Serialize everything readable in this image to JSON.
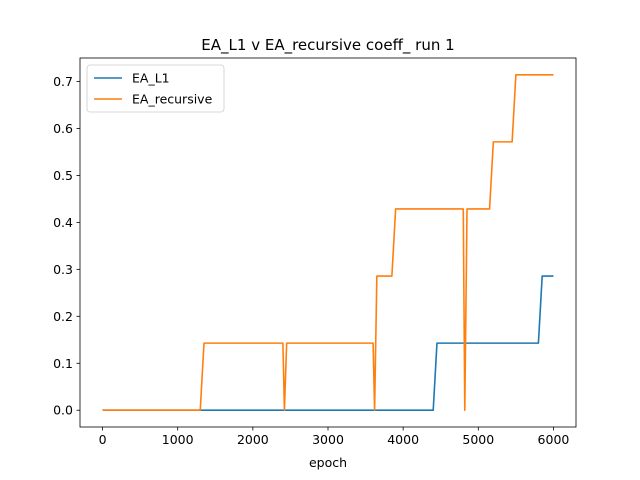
{
  "chart_data": {
    "type": "line",
    "title": "EA_L1 v EA_recursive coeff_ run 1",
    "xlabel": "epoch",
    "ylabel": "",
    "xlim": [
      -300,
      6300
    ],
    "ylim": [
      -0.0357,
      0.75
    ],
    "xticks": [
      0,
      1000,
      2000,
      3000,
      4000,
      5000,
      6000
    ],
    "xtick_labels": [
      "0",
      "1000",
      "2000",
      "3000",
      "4000",
      "5000",
      "6000"
    ],
    "yticks": [
      0.0,
      0.1,
      0.2,
      0.3,
      0.4,
      0.5,
      0.6,
      0.7
    ],
    "ytick_labels": [
      "0.0",
      "0.1",
      "0.2",
      "0.3",
      "0.4",
      "0.5",
      "0.6",
      "0.7"
    ],
    "grid": false,
    "legend_position": "top-left",
    "series": [
      {
        "name": "EA_L1",
        "color": "#1f77b4",
        "x": [
          0,
          4400,
          4450,
          5800,
          5850,
          6000
        ],
        "y": [
          0,
          0,
          0.1429,
          0.1429,
          0.2857,
          0.2857
        ]
      },
      {
        "name": "EA_recursive",
        "color": "#ff7f0e",
        "x": [
          0,
          1300,
          1350,
          2400,
          2420,
          2450,
          3600,
          3620,
          3650,
          3850,
          3900,
          4800,
          4820,
          4850,
          5150,
          5200,
          5450,
          5500,
          6000
        ],
        "y": [
          0,
          0,
          0.1429,
          0.1429,
          0,
          0.1429,
          0.1429,
          0,
          0.2857,
          0.2857,
          0.4286,
          0.4286,
          0,
          0.4286,
          0.4286,
          0.5714,
          0.5714,
          0.7143,
          0.7143
        ]
      }
    ]
  }
}
